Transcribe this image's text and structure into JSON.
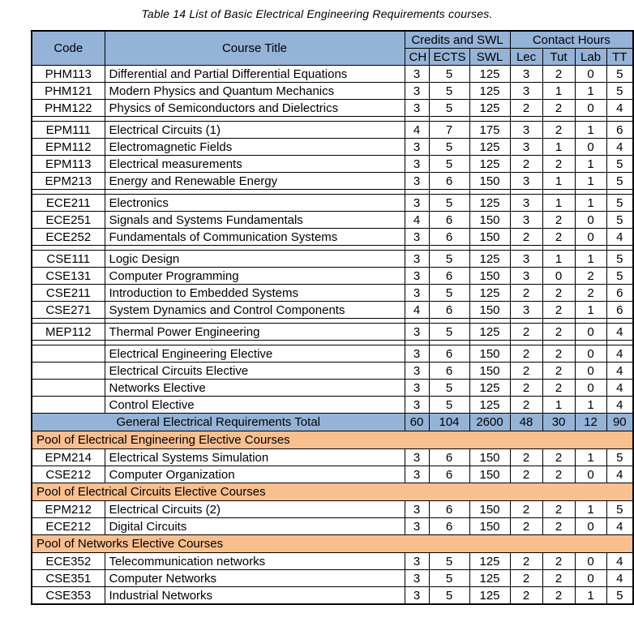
{
  "title": "Table 14 List of Basic Electrical Engineering Requirements courses.",
  "colors": {
    "header_blue": "#95B3D7",
    "section_orange": "#FABF8F",
    "border": "#000000",
    "text": "#000000"
  },
  "table": {
    "header": {
      "code": "Code",
      "course_title": "Course Title",
      "credits_group": "Credits and SWL",
      "contact_group": "Contact Hours",
      "sub": [
        "CH",
        "ECTS",
        "SWL",
        "Lec",
        "Tut",
        "Lab",
        "TT"
      ]
    },
    "rows": [
      {
        "type": "course",
        "code": "PHM113",
        "title": "Differential and Partial Differential Equations",
        "values": [
          3,
          5,
          125,
          3,
          2,
          0,
          5
        ]
      },
      {
        "type": "course",
        "code": "PHM121",
        "title": "Modern Physics and Quantum Mechanics",
        "values": [
          3,
          5,
          125,
          3,
          1,
          1,
          5
        ]
      },
      {
        "type": "course",
        "code": "PHM122",
        "title": "Physics of Semiconductors and Dielectrics",
        "values": [
          3,
          5,
          125,
          2,
          2,
          0,
          4
        ]
      },
      {
        "type": "spacer"
      },
      {
        "type": "course",
        "code": "EPM111",
        "title": "Electrical Circuits (1)",
        "values": [
          4,
          7,
          175,
          3,
          2,
          1,
          6
        ]
      },
      {
        "type": "course",
        "code": "EPM112",
        "title": "Electromagnetic Fields",
        "values": [
          3,
          5,
          125,
          3,
          1,
          0,
          4
        ]
      },
      {
        "type": "course",
        "code": "EPM113",
        "title": "Electrical measurements",
        "values": [
          3,
          5,
          125,
          2,
          2,
          1,
          5
        ]
      },
      {
        "type": "course",
        "code": "EPM213",
        "title": "Energy and Renewable Energy",
        "values": [
          3,
          6,
          150,
          3,
          1,
          1,
          5
        ]
      },
      {
        "type": "spacer"
      },
      {
        "type": "course",
        "code": "ECE211",
        "title": "Electronics",
        "values": [
          3,
          5,
          125,
          3,
          1,
          1,
          5
        ]
      },
      {
        "type": "course",
        "code": "ECE251",
        "title": "Signals and Systems Fundamentals",
        "values": [
          4,
          6,
          150,
          3,
          2,
          0,
          5
        ]
      },
      {
        "type": "course",
        "code": "ECE252",
        "title": "Fundamentals of Communication Systems",
        "values": [
          3,
          6,
          150,
          2,
          2,
          0,
          4
        ]
      },
      {
        "type": "spacer"
      },
      {
        "type": "course",
        "code": "CSE111",
        "title": "Logic Design",
        "values": [
          3,
          5,
          125,
          3,
          1,
          1,
          5
        ]
      },
      {
        "type": "course",
        "code": "CSE131",
        "title": "Computer Programming",
        "values": [
          3,
          6,
          150,
          3,
          0,
          2,
          5
        ]
      },
      {
        "type": "course",
        "code": "CSE211",
        "title": "Introduction to Embedded Systems",
        "values": [
          3,
          5,
          125,
          2,
          2,
          2,
          6
        ]
      },
      {
        "type": "course",
        "code": "CSE271",
        "title": "System Dynamics and Control Components",
        "values": [
          4,
          6,
          150,
          3,
          2,
          1,
          6
        ]
      },
      {
        "type": "spacer"
      },
      {
        "type": "course",
        "code": "MEP112",
        "title": "Thermal Power Engineering",
        "values": [
          3,
          5,
          125,
          2,
          2,
          0,
          4
        ]
      },
      {
        "type": "spacer"
      },
      {
        "type": "course",
        "code": "",
        "title": "Electrical Engineering Elective",
        "values": [
          3,
          6,
          150,
          2,
          2,
          0,
          4
        ]
      },
      {
        "type": "course",
        "code": "",
        "title": "Electrical Circuits Elective",
        "values": [
          3,
          6,
          150,
          2,
          2,
          0,
          4
        ]
      },
      {
        "type": "course",
        "code": "",
        "title": "Networks Elective",
        "values": [
          3,
          5,
          125,
          2,
          2,
          0,
          4
        ]
      },
      {
        "type": "course",
        "code": "",
        "title": "Control Elective",
        "values": [
          3,
          5,
          125,
          2,
          1,
          1,
          4
        ]
      },
      {
        "type": "total",
        "label": "General Electrical Requirements Total",
        "values": [
          60,
          104,
          2600,
          48,
          30,
          12,
          90
        ]
      },
      {
        "type": "section",
        "label": "Pool of Electrical Engineering Elective Courses"
      },
      {
        "type": "course",
        "code": "EPM214",
        "title": "Electrical Systems Simulation",
        "values": [
          3,
          6,
          150,
          2,
          2,
          1,
          5
        ]
      },
      {
        "type": "course",
        "code": "CSE212",
        "title": "Computer Organization",
        "values": [
          3,
          6,
          150,
          2,
          2,
          0,
          4
        ]
      },
      {
        "type": "section",
        "label": "Pool of Electrical Circuits Elective Courses"
      },
      {
        "type": "course",
        "code": "EPM212",
        "title": "Electrical Circuits (2)",
        "values": [
          3,
          6,
          150,
          2,
          2,
          1,
          5
        ]
      },
      {
        "type": "course",
        "code": "ECE212",
        "title": "Digital Circuits",
        "values": [
          3,
          6,
          150,
          2,
          2,
          0,
          4
        ]
      },
      {
        "type": "section",
        "label": "Pool of Networks Elective Courses"
      },
      {
        "type": "course",
        "code": "ECE352",
        "title": "Telecommunication networks",
        "values": [
          3,
          5,
          125,
          2,
          2,
          0,
          4
        ]
      },
      {
        "type": "course",
        "code": "CSE351",
        "title": "Computer Networks",
        "values": [
          3,
          5,
          125,
          2,
          2,
          0,
          4
        ]
      },
      {
        "type": "course",
        "code": "CSE353",
        "title": "Industrial Networks",
        "values": [
          3,
          5,
          125,
          2,
          2,
          1,
          5
        ]
      }
    ]
  }
}
